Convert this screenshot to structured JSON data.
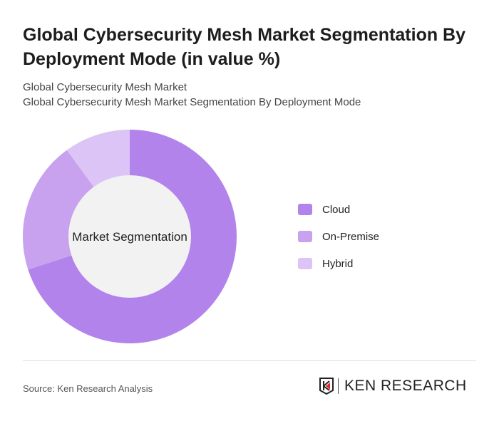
{
  "title": "Global Cybersecurity Mesh Market Segmentation By Deployment Mode (in value %)",
  "subtitle_1": "Global Cybersecurity Mesh Market",
  "subtitle_2": "Global Cybersecurity Mesh Market Segmentation By Deployment Mode",
  "source": "Source: Ken Research Analysis",
  "logo_text": "KEN RESEARCH",
  "chart_data": {
    "type": "pie",
    "variant": "donut",
    "center_label": "Market Segmentation",
    "categories": [
      "Cloud",
      "On-Premise",
      "Hybrid"
    ],
    "values": [
      70,
      20,
      10
    ],
    "colors": [
      "#b383ec",
      "#c8a2ef",
      "#dcc5f6"
    ],
    "legend_position": "right"
  }
}
